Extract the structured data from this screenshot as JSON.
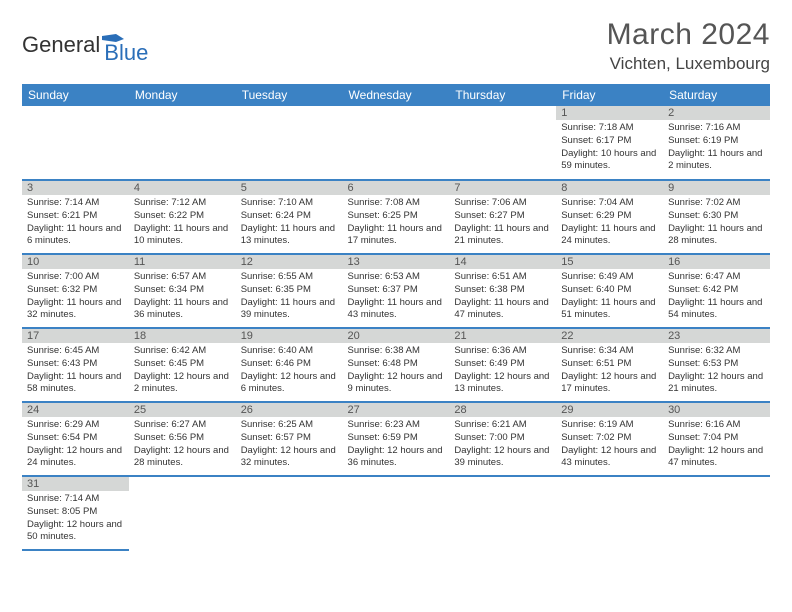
{
  "logo": {
    "general": "General",
    "blue": "Blue"
  },
  "title": "March 2024",
  "location": "Vichten, Luxembourg",
  "header_color": "#3b82c4",
  "day_num_bg": "#d5d7d6",
  "grid_line_color": "#3b82c4",
  "days": [
    "Sunday",
    "Monday",
    "Tuesday",
    "Wednesday",
    "Thursday",
    "Friday",
    "Saturday"
  ],
  "weeks": [
    [
      null,
      null,
      null,
      null,
      null,
      {
        "num": "1",
        "sunrise": "Sunrise: 7:18 AM",
        "sunset": "Sunset: 6:17 PM",
        "daylight": "Daylight: 10 hours and 59 minutes."
      },
      {
        "num": "2",
        "sunrise": "Sunrise: 7:16 AM",
        "sunset": "Sunset: 6:19 PM",
        "daylight": "Daylight: 11 hours and 2 minutes."
      }
    ],
    [
      {
        "num": "3",
        "sunrise": "Sunrise: 7:14 AM",
        "sunset": "Sunset: 6:21 PM",
        "daylight": "Daylight: 11 hours and 6 minutes."
      },
      {
        "num": "4",
        "sunrise": "Sunrise: 7:12 AM",
        "sunset": "Sunset: 6:22 PM",
        "daylight": "Daylight: 11 hours and 10 minutes."
      },
      {
        "num": "5",
        "sunrise": "Sunrise: 7:10 AM",
        "sunset": "Sunset: 6:24 PM",
        "daylight": "Daylight: 11 hours and 13 minutes."
      },
      {
        "num": "6",
        "sunrise": "Sunrise: 7:08 AM",
        "sunset": "Sunset: 6:25 PM",
        "daylight": "Daylight: 11 hours and 17 minutes."
      },
      {
        "num": "7",
        "sunrise": "Sunrise: 7:06 AM",
        "sunset": "Sunset: 6:27 PM",
        "daylight": "Daylight: 11 hours and 21 minutes."
      },
      {
        "num": "8",
        "sunrise": "Sunrise: 7:04 AM",
        "sunset": "Sunset: 6:29 PM",
        "daylight": "Daylight: 11 hours and 24 minutes."
      },
      {
        "num": "9",
        "sunrise": "Sunrise: 7:02 AM",
        "sunset": "Sunset: 6:30 PM",
        "daylight": "Daylight: 11 hours and 28 minutes."
      }
    ],
    [
      {
        "num": "10",
        "sunrise": "Sunrise: 7:00 AM",
        "sunset": "Sunset: 6:32 PM",
        "daylight": "Daylight: 11 hours and 32 minutes."
      },
      {
        "num": "11",
        "sunrise": "Sunrise: 6:57 AM",
        "sunset": "Sunset: 6:34 PM",
        "daylight": "Daylight: 11 hours and 36 minutes."
      },
      {
        "num": "12",
        "sunrise": "Sunrise: 6:55 AM",
        "sunset": "Sunset: 6:35 PM",
        "daylight": "Daylight: 11 hours and 39 minutes."
      },
      {
        "num": "13",
        "sunrise": "Sunrise: 6:53 AM",
        "sunset": "Sunset: 6:37 PM",
        "daylight": "Daylight: 11 hours and 43 minutes."
      },
      {
        "num": "14",
        "sunrise": "Sunrise: 6:51 AM",
        "sunset": "Sunset: 6:38 PM",
        "daylight": "Daylight: 11 hours and 47 minutes."
      },
      {
        "num": "15",
        "sunrise": "Sunrise: 6:49 AM",
        "sunset": "Sunset: 6:40 PM",
        "daylight": "Daylight: 11 hours and 51 minutes."
      },
      {
        "num": "16",
        "sunrise": "Sunrise: 6:47 AM",
        "sunset": "Sunset: 6:42 PM",
        "daylight": "Daylight: 11 hours and 54 minutes."
      }
    ],
    [
      {
        "num": "17",
        "sunrise": "Sunrise: 6:45 AM",
        "sunset": "Sunset: 6:43 PM",
        "daylight": "Daylight: 11 hours and 58 minutes."
      },
      {
        "num": "18",
        "sunrise": "Sunrise: 6:42 AM",
        "sunset": "Sunset: 6:45 PM",
        "daylight": "Daylight: 12 hours and 2 minutes."
      },
      {
        "num": "19",
        "sunrise": "Sunrise: 6:40 AM",
        "sunset": "Sunset: 6:46 PM",
        "daylight": "Daylight: 12 hours and 6 minutes."
      },
      {
        "num": "20",
        "sunrise": "Sunrise: 6:38 AM",
        "sunset": "Sunset: 6:48 PM",
        "daylight": "Daylight: 12 hours and 9 minutes."
      },
      {
        "num": "21",
        "sunrise": "Sunrise: 6:36 AM",
        "sunset": "Sunset: 6:49 PM",
        "daylight": "Daylight: 12 hours and 13 minutes."
      },
      {
        "num": "22",
        "sunrise": "Sunrise: 6:34 AM",
        "sunset": "Sunset: 6:51 PM",
        "daylight": "Daylight: 12 hours and 17 minutes."
      },
      {
        "num": "23",
        "sunrise": "Sunrise: 6:32 AM",
        "sunset": "Sunset: 6:53 PM",
        "daylight": "Daylight: 12 hours and 21 minutes."
      }
    ],
    [
      {
        "num": "24",
        "sunrise": "Sunrise: 6:29 AM",
        "sunset": "Sunset: 6:54 PM",
        "daylight": "Daylight: 12 hours and 24 minutes."
      },
      {
        "num": "25",
        "sunrise": "Sunrise: 6:27 AM",
        "sunset": "Sunset: 6:56 PM",
        "daylight": "Daylight: 12 hours and 28 minutes."
      },
      {
        "num": "26",
        "sunrise": "Sunrise: 6:25 AM",
        "sunset": "Sunset: 6:57 PM",
        "daylight": "Daylight: 12 hours and 32 minutes."
      },
      {
        "num": "27",
        "sunrise": "Sunrise: 6:23 AM",
        "sunset": "Sunset: 6:59 PM",
        "daylight": "Daylight: 12 hours and 36 minutes."
      },
      {
        "num": "28",
        "sunrise": "Sunrise: 6:21 AM",
        "sunset": "Sunset: 7:00 PM",
        "daylight": "Daylight: 12 hours and 39 minutes."
      },
      {
        "num": "29",
        "sunrise": "Sunrise: 6:19 AM",
        "sunset": "Sunset: 7:02 PM",
        "daylight": "Daylight: 12 hours and 43 minutes."
      },
      {
        "num": "30",
        "sunrise": "Sunrise: 6:16 AM",
        "sunset": "Sunset: 7:04 PM",
        "daylight": "Daylight: 12 hours and 47 minutes."
      }
    ],
    [
      {
        "num": "31",
        "sunrise": "Sunrise: 7:14 AM",
        "sunset": "Sunset: 8:05 PM",
        "daylight": "Daylight: 12 hours and 50 minutes."
      },
      null,
      null,
      null,
      null,
      null,
      null
    ]
  ]
}
